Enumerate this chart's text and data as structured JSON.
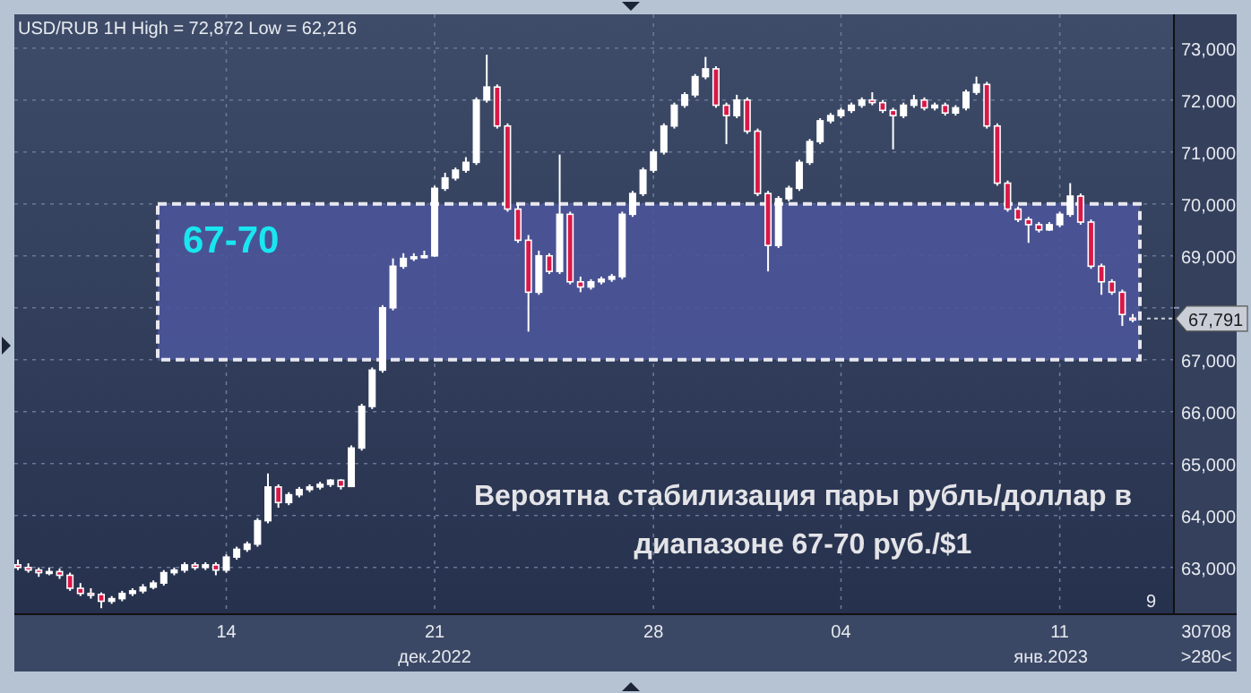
{
  "chart_data": {
    "type": "candlestick",
    "title": "USD/RUB 1H High = 72,872 Low = 62,216",
    "categories": [
      null,
      null,
      null,
      null,
      null,
      null,
      null,
      null,
      null,
      null,
      null,
      null,
      null,
      null,
      null,
      null,
      null,
      null,
      null,
      null,
      "14",
      null,
      null,
      null,
      null,
      null,
      null,
      null,
      null,
      null,
      null,
      null,
      null,
      null,
      null,
      null,
      null,
      null,
      null,
      null,
      "21",
      null,
      null,
      null,
      null,
      null,
      null,
      null,
      null,
      null,
      null,
      null,
      null,
      null,
      null,
      null,
      null,
      null,
      null,
      null,
      null,
      "28",
      null,
      null,
      null,
      null,
      null,
      null,
      null,
      null,
      null,
      null,
      null,
      null,
      null,
      null,
      null,
      null,
      null,
      "04",
      null,
      null,
      null,
      null,
      null,
      null,
      null,
      null,
      null,
      null,
      null,
      null,
      null,
      null,
      null,
      null,
      null,
      null,
      null,
      null,
      "11",
      null,
      null,
      null,
      null,
      null,
      null,
      null
    ],
    "ohlc": [
      [
        63050,
        63150,
        62950,
        63000
      ],
      [
        63000,
        63080,
        62900,
        62950
      ],
      [
        62950,
        63000,
        62820,
        62900
      ],
      [
        62900,
        63000,
        62850,
        62920
      ],
      [
        62920,
        62980,
        62780,
        62850
      ],
      [
        62850,
        62900,
        62550,
        62600
      ],
      [
        62600,
        62700,
        62450,
        62500
      ],
      [
        62500,
        62600,
        62400,
        62480
      ],
      [
        62480,
        62520,
        62216,
        62350
      ],
      [
        62350,
        62450,
        62300,
        62400
      ],
      [
        62400,
        62550,
        62350,
        62500
      ],
      [
        62500,
        62600,
        62450,
        62550
      ],
      [
        62550,
        62680,
        62500,
        62620
      ],
      [
        62620,
        62750,
        62580,
        62700
      ],
      [
        62700,
        62950,
        62650,
        62900
      ],
      [
        62900,
        63000,
        62850,
        62950
      ],
      [
        62950,
        63100,
        62900,
        63050
      ],
      [
        63050,
        63100,
        62950,
        63000
      ],
      [
        63000,
        63100,
        62950,
        63050
      ],
      [
        63050,
        63100,
        62850,
        62950
      ],
      [
        62950,
        63250,
        62900,
        63200
      ],
      [
        63200,
        63400,
        63150,
        63350
      ],
      [
        63350,
        63500,
        63300,
        63450
      ],
      [
        63450,
        63950,
        63400,
        63900
      ],
      [
        63900,
        64810,
        63850,
        64550
      ],
      [
        64550,
        64600,
        64150,
        64250
      ],
      [
        64250,
        64450,
        64200,
        64400
      ],
      [
        64400,
        64550,
        64350,
        64500
      ],
      [
        64500,
        64600,
        64450,
        64550
      ],
      [
        64550,
        64650,
        64500,
        64600
      ],
      [
        64600,
        64700,
        64550,
        64680
      ],
      [
        64680,
        64700,
        64500,
        64560
      ],
      [
        64560,
        65350,
        64550,
        65300
      ],
      [
        65300,
        66150,
        65250,
        66100
      ],
      [
        66100,
        66850,
        66050,
        66800
      ],
      [
        66800,
        68050,
        66750,
        68000
      ],
      [
        68000,
        68950,
        67950,
        68800
      ],
      [
        68800,
        69050,
        68750,
        68950
      ],
      [
        68950,
        69050,
        68900,
        68980
      ],
      [
        68980,
        69100,
        68950,
        69000
      ],
      [
        69000,
        70350,
        68980,
        70300
      ],
      [
        70300,
        70600,
        70250,
        70500
      ],
      [
        70500,
        70700,
        70450,
        70650
      ],
      [
        70650,
        70900,
        70600,
        70800
      ],
      [
        70800,
        72050,
        70750,
        72000
      ],
      [
        72000,
        72872,
        71950,
        72250
      ],
      [
        72250,
        72300,
        71450,
        71500
      ],
      [
        71500,
        71550,
        69850,
        69900
      ],
      [
        69900,
        70000,
        69250,
        69300
      ],
      [
        69300,
        69400,
        67540,
        68300
      ],
      [
        68300,
        69100,
        68250,
        69000
      ],
      [
        69000,
        69050,
        68650,
        68700
      ],
      [
        68700,
        70950,
        68650,
        69800
      ],
      [
        69800,
        69850,
        68450,
        68500
      ],
      [
        68500,
        68600,
        68300,
        68400
      ],
      [
        68400,
        68550,
        68350,
        68500
      ],
      [
        68500,
        68600,
        68450,
        68550
      ],
      [
        68550,
        68650,
        68500,
        68600
      ],
      [
        68600,
        69850,
        68550,
        69800
      ],
      [
        69800,
        70250,
        69750,
        70200
      ],
      [
        70200,
        70700,
        70150,
        70650
      ],
      [
        70650,
        71050,
        70600,
        71000
      ],
      [
        71000,
        71550,
        70950,
        71500
      ],
      [
        71500,
        71950,
        71450,
        71900
      ],
      [
        71900,
        72150,
        71850,
        72100
      ],
      [
        72100,
        72500,
        72050,
        72450
      ],
      [
        72450,
        72830,
        72400,
        72600
      ],
      [
        72600,
        72650,
        71850,
        71900
      ],
      [
        71900,
        71950,
        71150,
        71700
      ],
      [
        71700,
        72100,
        71650,
        72000
      ],
      [
        72000,
        72050,
        71350,
        71400
      ],
      [
        71400,
        71450,
        70150,
        70200
      ],
      [
        70200,
        70250,
        68700,
        69200
      ],
      [
        69200,
        70150,
        69150,
        70100
      ],
      [
        70100,
        70350,
        70050,
        70300
      ],
      [
        70300,
        70850,
        70250,
        70800
      ],
      [
        70800,
        71250,
        70750,
        71200
      ],
      [
        71200,
        71650,
        71150,
        71600
      ],
      [
        71600,
        71750,
        71550,
        71700
      ],
      [
        71700,
        71850,
        71650,
        71800
      ],
      [
        71800,
        71950,
        71750,
        71900
      ],
      [
        71900,
        72050,
        71850,
        72000
      ],
      [
        72000,
        72150,
        71900,
        71950
      ],
      [
        71950,
        72000,
        71750,
        71800
      ],
      [
        71800,
        71850,
        71050,
        71700
      ],
      [
        71700,
        71950,
        71650,
        71900
      ],
      [
        71900,
        72100,
        71850,
        72000
      ],
      [
        72000,
        72050,
        71800,
        71850
      ],
      [
        71850,
        71950,
        71800,
        71900
      ],
      [
        71900,
        71950,
        71700,
        71750
      ],
      [
        71750,
        71900,
        71700,
        71850
      ],
      [
        71850,
        72200,
        71800,
        72150
      ],
      [
        72150,
        72450,
        72100,
        72300
      ],
      [
        72300,
        72350,
        71450,
        71500
      ],
      [
        71500,
        71550,
        70350,
        70400
      ],
      [
        70400,
        70450,
        69850,
        69900
      ],
      [
        69900,
        69950,
        69650,
        69700
      ],
      [
        69700,
        69750,
        69250,
        69600
      ],
      [
        69600,
        69650,
        69450,
        69500
      ],
      [
        69500,
        69650,
        69480,
        69600
      ],
      [
        69600,
        69850,
        69550,
        69800
      ],
      [
        69800,
        70400,
        69750,
        70150
      ],
      [
        70150,
        70200,
        69600,
        69650
      ],
      [
        69650,
        69700,
        68750,
        68800
      ],
      [
        68800,
        68850,
        68250,
        68500
      ],
      [
        68500,
        68550,
        68250,
        68300
      ],
      [
        68300,
        68350,
        67650,
        67870
      ],
      [
        67800,
        67880,
        67720,
        67791
      ]
    ],
    "ylim": [
      62100,
      73650
    ],
    "yticks": [
      {
        "value": 63000,
        "label": "63,000"
      },
      {
        "value": 64000,
        "label": "64,000"
      },
      {
        "value": 65000,
        "label": "65,000"
      },
      {
        "value": 66000,
        "label": "66,000"
      },
      {
        "value": 67000,
        "label": "67,000"
      },
      {
        "value": 68000,
        "label": null
      },
      {
        "value": 69000,
        "label": "69,000"
      },
      {
        "value": 70000,
        "label": "70,000"
      },
      {
        "value": 71000,
        "label": "71,000"
      },
      {
        "value": 72000,
        "label": "72,000"
      },
      {
        "value": 73000,
        "label": "73,000"
      }
    ],
    "grid": true,
    "bands": [
      {
        "axis": "y",
        "from": 67000,
        "to": 70000,
        "label": "67-70",
        "color": "#4b5599"
      }
    ],
    "ref_lines": [
      {
        "axis": "y",
        "value": 67791,
        "label": "67,791"
      }
    ],
    "annotations": [
      "Вероятна стабилизация пары рубль/доллар в диапазоне 67-70 руб./$1",
      "дек.2022",
      "янв.2023",
      "9",
      "30708",
      ">280<"
    ]
  }
}
